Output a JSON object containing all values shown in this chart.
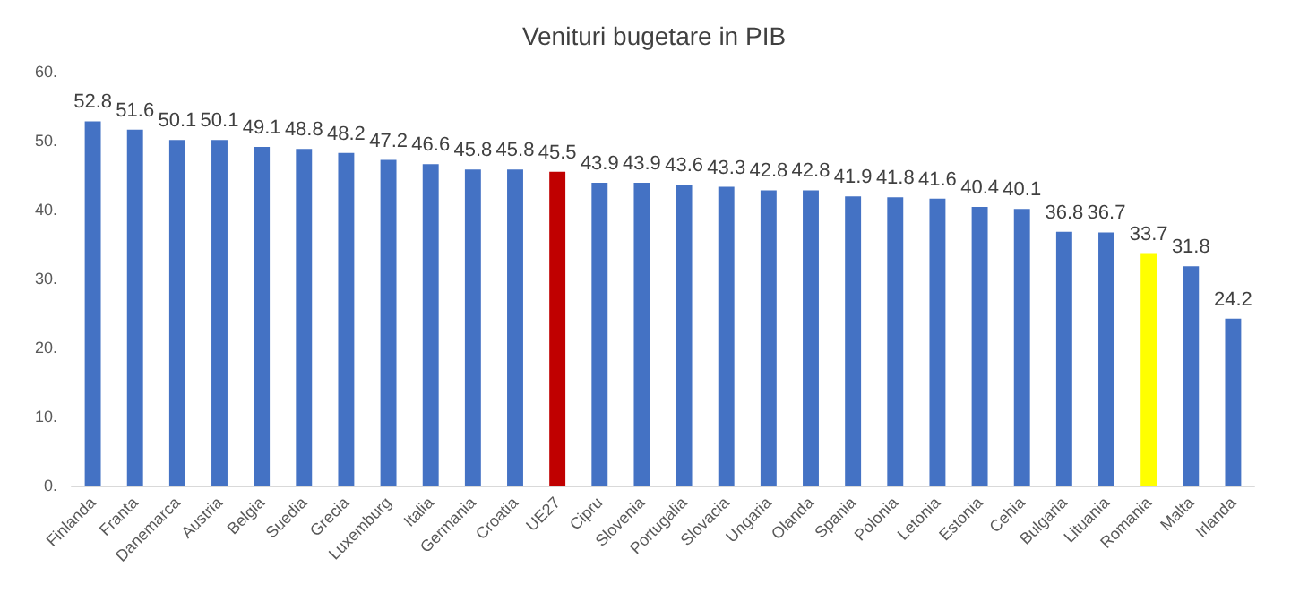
{
  "chart_data": {
    "type": "bar",
    "title": "Venituri bugetare in PIB",
    "categories": [
      "Finlanda",
      "Franta",
      "Danemarca",
      "Austria",
      "Belgia",
      "Suedia",
      "Grecia",
      "Luxemburg",
      "Italia",
      "Germania",
      "Croatia",
      "UE27",
      "Cipru",
      "Slovenia",
      "Portugalia",
      "Slovacia",
      "Ungaria",
      "Olanda",
      "Spania",
      "Polonia",
      "Letonia",
      "Estonia",
      "Cehia",
      "Bulgaria",
      "Lituania",
      "Romania",
      "Malta",
      "Irlanda"
    ],
    "values": [
      52.8,
      51.6,
      50.1,
      50.1,
      49.1,
      48.8,
      48.2,
      47.2,
      46.6,
      45.8,
      45.8,
      45.5,
      43.9,
      43.9,
      43.6,
      43.3,
      42.8,
      42.8,
      41.9,
      41.8,
      41.6,
      40.4,
      40.1,
      36.8,
      36.7,
      33.7,
      31.8,
      24.2
    ],
    "colors": [
      "#4472c4",
      "#4472c4",
      "#4472c4",
      "#4472c4",
      "#4472c4",
      "#4472c4",
      "#4472c4",
      "#4472c4",
      "#4472c4",
      "#4472c4",
      "#4472c4",
      "#c00000",
      "#4472c4",
      "#4472c4",
      "#4472c4",
      "#4472c4",
      "#4472c4",
      "#4472c4",
      "#4472c4",
      "#4472c4",
      "#4472c4",
      "#4472c4",
      "#4472c4",
      "#4472c4",
      "#4472c4",
      "#ffff00",
      "#4472c4",
      "#4472c4"
    ],
    "ylim": [
      0,
      60
    ],
    "yticks": [
      {
        "value": 0,
        "label": "0."
      },
      {
        "value": 10,
        "label": "10."
      },
      {
        "value": 20,
        "label": "20."
      },
      {
        "value": 30,
        "label": "30."
      },
      {
        "value": 40,
        "label": "40."
      },
      {
        "value": 50,
        "label": "50."
      },
      {
        "value": 60,
        "label": "60."
      }
    ],
    "data_labels": true
  }
}
